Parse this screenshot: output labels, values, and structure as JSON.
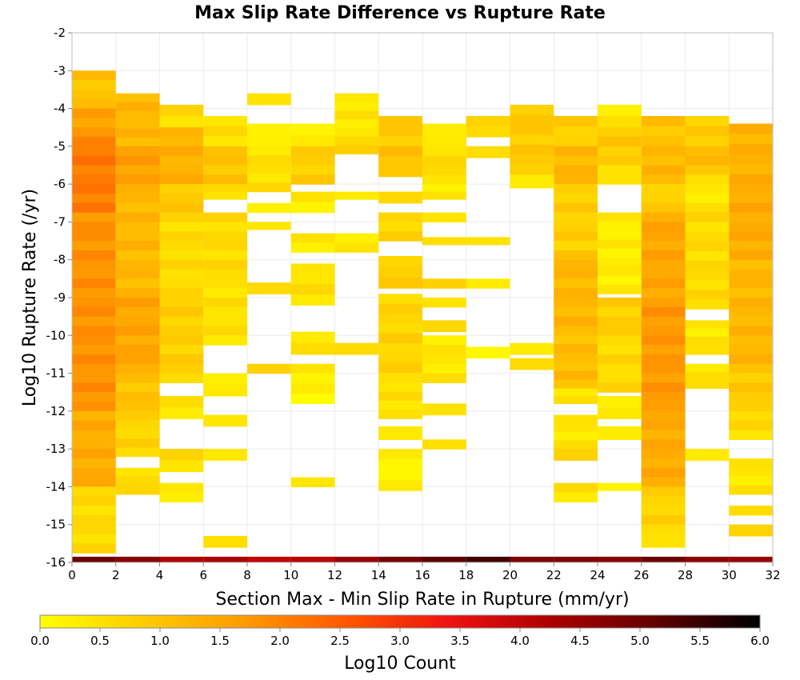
{
  "chart_data": {
    "type": "heatmap",
    "title": "Max Slip Rate Difference vs Rupture Rate",
    "xlabel": "Section Max - Min Slip Rate in Rupture (mm/yr)",
    "ylabel": "Log10 Rupture Rate (/yr)",
    "xlim": [
      0,
      32
    ],
    "ylim": [
      -16,
      -2
    ],
    "x_ticks": [
      "0",
      "2",
      "4",
      "6",
      "8",
      "10",
      "12",
      "14",
      "16",
      "18",
      "20",
      "22",
      "24",
      "26",
      "28",
      "30",
      "32"
    ],
    "y_ticks": [
      "-2",
      "-3",
      "-4",
      "-5",
      "-6",
      "-7",
      "-8",
      "-9",
      "-10",
      "-11",
      "-12",
      "-13",
      "-14",
      "-15",
      "-16"
    ],
    "x_bin_width": 2,
    "y_bin_height": 0.25,
    "grid": true,
    "colorbar": {
      "label": "Log10 Count",
      "range": [
        0,
        6
      ],
      "ticks": [
        "0.0",
        "0.5",
        "1.0",
        "1.5",
        "2.0",
        "2.5",
        "3.0",
        "3.5",
        "4.0",
        "4.5",
        "5.0",
        "5.5",
        "6.0"
      ],
      "stops": [
        "#ffff00",
        "#ffcc00",
        "#ff9900",
        "#ff5500",
        "#ee1111",
        "#aa0000",
        "#600000",
        "#000000"
      ]
    },
    "columns": [
      {
        "x": 0,
        "bottom_row": 5.0,
        "segments": [
          [
            -3.0,
            -4.0,
            1.0
          ],
          [
            -4.0,
            -4.75,
            1.6
          ],
          [
            -4.75,
            -6.75,
            2.1
          ],
          [
            -6.75,
            -12.0,
            1.8
          ],
          [
            -12.0,
            -14.0,
            1.4
          ],
          [
            -14.0,
            -15.75,
            0.6
          ]
        ]
      },
      {
        "x": 2,
        "bottom_row": 4.7,
        "segments": [
          [
            -3.6,
            -5.0,
            1.2
          ],
          [
            -5.0,
            -6.0,
            1.6
          ],
          [
            -6.0,
            -9.0,
            1.2
          ],
          [
            -9.0,
            -11.0,
            1.5
          ],
          [
            -11.0,
            -12.25,
            1.0
          ],
          [
            -12.25,
            -13.2,
            0.7
          ],
          [
            -13.5,
            -14.2,
            0.6
          ]
        ]
      },
      {
        "x": 4,
        "bottom_row": 4.2,
        "segments": [
          [
            -3.9,
            -4.5,
            0.6
          ],
          [
            -4.5,
            -6.0,
            1.3
          ],
          [
            -6.0,
            -7.0,
            0.9
          ],
          [
            -7.0,
            -9.0,
            0.6
          ],
          [
            -9.0,
            -11.0,
            0.8
          ],
          [
            -11.0,
            -11.25,
            0.5
          ],
          [
            -11.6,
            -12.2,
            0.4
          ],
          [
            -13.0,
            -13.6,
            0.6
          ],
          [
            -13.9,
            -14.4,
            0.4
          ]
        ]
      },
      {
        "x": 6,
        "bottom_row": 4.3,
        "segments": [
          [
            -4.2,
            -5.0,
            0.5
          ],
          [
            -5.0,
            -6.0,
            1.0
          ],
          [
            -6.0,
            -6.4,
            0.5
          ],
          [
            -6.75,
            -8.5,
            0.6
          ],
          [
            -8.5,
            -10.25,
            0.5
          ],
          [
            -11.0,
            -11.6,
            0.4
          ],
          [
            -12.1,
            -12.4,
            0.6
          ],
          [
            -13.0,
            -13.3,
            0.5
          ],
          [
            -15.3,
            -15.6,
            0.5
          ]
        ]
      },
      {
        "x": 8,
        "bottom_row": 4.0,
        "segments": [
          [
            -3.6,
            -3.9,
            0.4
          ],
          [
            -4.4,
            -5.0,
            0.3
          ],
          [
            -5.0,
            -6.2,
            0.5
          ],
          [
            -6.5,
            -6.75,
            0.4
          ],
          [
            -7.0,
            -7.2,
            0.4
          ],
          [
            -8.6,
            -8.9,
            0.5
          ],
          [
            -10.75,
            -11.0,
            0.6
          ]
        ]
      },
      {
        "x": 10,
        "bottom_row": 4.1,
        "segments": [
          [
            -4.4,
            -5.0,
            0.2
          ],
          [
            -5.0,
            -6.0,
            0.8
          ],
          [
            -6.2,
            -6.75,
            0.3
          ],
          [
            -7.3,
            -7.8,
            0.4
          ],
          [
            -8.1,
            -9.2,
            0.5
          ],
          [
            -9.9,
            -10.5,
            0.5
          ],
          [
            -10.75,
            -11.0,
            0.6
          ],
          [
            -11.0,
            -11.8,
            0.2
          ],
          [
            -13.75,
            -14.0,
            0.3
          ]
        ]
      },
      {
        "x": 12,
        "bottom_row": 4.5,
        "segments": [
          [
            -3.6,
            -4.75,
            0.4
          ],
          [
            -4.75,
            -5.2,
            0.8
          ],
          [
            -6.2,
            -6.4,
            0.5
          ],
          [
            -7.3,
            -7.8,
            0.3
          ],
          [
            -10.2,
            -10.5,
            0.5
          ]
        ]
      },
      {
        "x": 14,
        "bottom_row": 4.9,
        "segments": [
          [
            -4.2,
            -5.0,
            0.9
          ],
          [
            -5.0,
            -5.8,
            1.0
          ],
          [
            -6.2,
            -6.5,
            0.5
          ],
          [
            -6.75,
            -7.5,
            0.7
          ],
          [
            -7.9,
            -8.75,
            0.8
          ],
          [
            -8.9,
            -11.25,
            0.7
          ],
          [
            -11.25,
            -12.2,
            0.5
          ],
          [
            -12.4,
            -12.75,
            0.3
          ],
          [
            -13.0,
            -14.1,
            0.2
          ]
        ]
      },
      {
        "x": 16,
        "bottom_row": 5.2,
        "segments": [
          [
            -4.4,
            -5.0,
            0.4
          ],
          [
            -5.0,
            -6.0,
            0.6
          ],
          [
            -6.0,
            -6.4,
            0.3
          ],
          [
            -6.75,
            -7.0,
            0.4
          ],
          [
            -7.4,
            -7.6,
            0.4
          ],
          [
            -8.5,
            -8.75,
            0.6
          ],
          [
            -9.0,
            -9.25,
            0.4
          ],
          [
            -9.6,
            -9.9,
            0.8
          ],
          [
            -10.0,
            -11.25,
            0.4
          ],
          [
            -11.8,
            -12.1,
            0.6
          ],
          [
            -12.75,
            -13.0,
            0.5
          ]
        ]
      },
      {
        "x": 18,
        "bottom_row": 5.4,
        "segments": [
          [
            -4.2,
            -4.75,
            0.6
          ],
          [
            -5.0,
            -5.3,
            0.4
          ],
          [
            -7.4,
            -7.6,
            0.4
          ],
          [
            -8.5,
            -8.75,
            0.4
          ],
          [
            -10.3,
            -10.6,
            0.3
          ]
        ]
      },
      {
        "x": 20,
        "bottom_row": 4.8,
        "segments": [
          [
            -3.9,
            -5.75,
            0.9
          ],
          [
            -5.75,
            -6.1,
            0.5
          ],
          [
            -10.2,
            -10.5,
            0.4
          ],
          [
            -10.6,
            -10.9,
            0.5
          ]
        ]
      },
      {
        "x": 22,
        "bottom_row": 4.8,
        "segments": [
          [
            -4.2,
            -5.0,
            0.8
          ],
          [
            -5.0,
            -6.0,
            1.2
          ],
          [
            -6.0,
            -7.75,
            0.8
          ],
          [
            -7.75,
            -10.0,
            1.2
          ],
          [
            -10.0,
            -11.4,
            1.1
          ],
          [
            -11.4,
            -11.8,
            0.4
          ],
          [
            -12.1,
            -13.0,
            0.4
          ],
          [
            -13.0,
            -13.3,
            0.6
          ],
          [
            -13.9,
            -14.4,
            0.5
          ]
        ]
      },
      {
        "x": 24,
        "bottom_row": 4.7,
        "segments": [
          [
            -3.9,
            -4.5,
            0.4
          ],
          [
            -4.5,
            -5.5,
            0.9
          ],
          [
            -5.5,
            -6.0,
            0.4
          ],
          [
            -6.75,
            -8.9,
            0.3
          ],
          [
            -9.0,
            -10.0,
            0.8
          ],
          [
            -10.0,
            -11.5,
            0.6
          ],
          [
            -11.6,
            -12.2,
            0.4
          ],
          [
            -12.4,
            -12.75,
            0.5
          ],
          [
            -13.9,
            -14.1,
            0.3
          ]
        ]
      },
      {
        "x": 26,
        "bottom_row": 5.0,
        "segments": [
          [
            -4.2,
            -5.0,
            1.0
          ],
          [
            -5.0,
            -6.0,
            1.2
          ],
          [
            -6.0,
            -6.75,
            0.8
          ],
          [
            -6.75,
            -9.0,
            1.5
          ],
          [
            -9.0,
            -12.0,
            1.7
          ],
          [
            -12.0,
            -14.0,
            1.4
          ],
          [
            -14.0,
            -15.25,
            0.7
          ],
          [
            -15.25,
            -15.6,
            0.3
          ]
        ]
      },
      {
        "x": 28,
        "bottom_row": 4.6,
        "segments": [
          [
            -4.2,
            -5.0,
            0.8
          ],
          [
            -5.0,
            -5.75,
            1.1
          ],
          [
            -5.75,
            -6.75,
            0.4
          ],
          [
            -6.75,
            -9.3,
            0.6
          ],
          [
            -9.6,
            -10.25,
            0.4
          ],
          [
            -10.25,
            -10.5,
            0.6
          ],
          [
            -10.75,
            -11.4,
            0.5
          ],
          [
            -13.0,
            -13.3,
            0.5
          ]
        ]
      },
      {
        "x": 30,
        "bottom_row": 4.5,
        "segments": [
          [
            -4.4,
            -6.0,
            1.3
          ],
          [
            -6.0,
            -8.0,
            1.4
          ],
          [
            -8.0,
            -11.0,
            1.2
          ],
          [
            -11.0,
            -12.0,
            0.9
          ],
          [
            -12.0,
            -12.75,
            0.6
          ],
          [
            -13.25,
            -14.2,
            0.4
          ],
          [
            -14.5,
            -14.75,
            0.4
          ],
          [
            -15.0,
            -15.3,
            0.6
          ]
        ]
      }
    ]
  }
}
